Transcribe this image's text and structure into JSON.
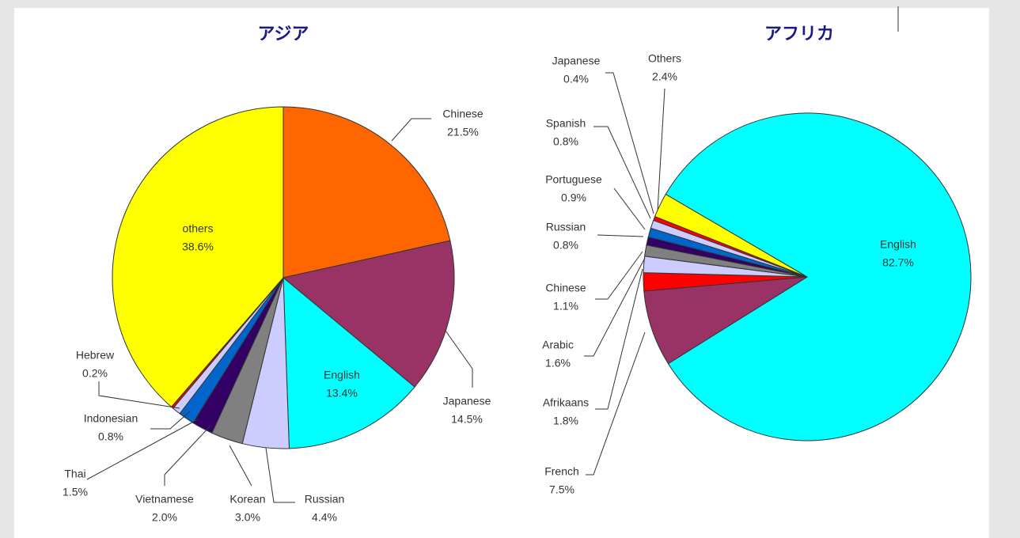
{
  "chart_data": [
    {
      "type": "pie",
      "title": "アジア",
      "categories": [
        "Chinese",
        "Japanese",
        "English",
        "Russian",
        "Korean",
        "Vietnamese",
        "Thai",
        "Indonesian",
        "Hebrew",
        "others"
      ],
      "values": [
        21.5,
        14.5,
        13.4,
        4.4,
        3.0,
        2.0,
        1.5,
        0.8,
        0.2,
        38.6
      ],
      "value_labels": [
        "21.5%",
        "14.5%",
        "13.4%",
        "4.4%",
        "3.0%",
        "2.0%",
        "1.5%",
        "0.8%",
        "0.2%",
        "38.6%"
      ],
      "colors": [
        "#ff6600",
        "#993366",
        "#00ffff",
        "#ccccff",
        "#808080",
        "#330066",
        "#0066cc",
        "#ccccff",
        "#ff0000",
        "#ffff00"
      ]
    },
    {
      "type": "pie",
      "title": "アフリカ",
      "categories": [
        "English",
        "French",
        "Afrikaans",
        "Arabic",
        "Chinese",
        "Russian",
        "Portuguese",
        "Spanish",
        "Japanese",
        "Others"
      ],
      "values": [
        82.7,
        7.5,
        1.8,
        1.6,
        1.1,
        0.8,
        0.9,
        0.8,
        0.4,
        2.4
      ],
      "value_labels": [
        "82.7%",
        "7.5%",
        "1.8%",
        "1.6%",
        "1.1%",
        "0.8%",
        "0.9%",
        "0.8%",
        "0.4%",
        "2.4%"
      ],
      "colors": [
        "#00ffff",
        "#993366",
        "#ff0000",
        "#ccccff",
        "#808080",
        "#330066",
        "#0066cc",
        "#ccccff",
        "#ff0000",
        "#ffff00"
      ]
    }
  ]
}
